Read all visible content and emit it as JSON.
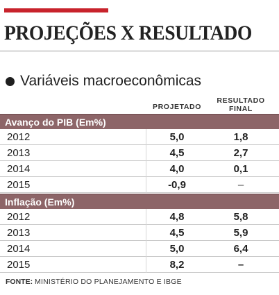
{
  "header": {
    "title": "PROJEÇÕES X RESULTADO",
    "subtitle": "Variáveis macroeconômicas",
    "accent_color": "#c8232c"
  },
  "table": {
    "columns": {
      "projetado": "PROJETADO",
      "resultado_line1": "RESULTADO",
      "resultado_line2": "FINAL"
    },
    "header_color": "#8d6568",
    "sections": [
      {
        "title": "Avanço do PIB (Em%)",
        "rows": [
          {
            "year": "2012",
            "projetado": "5,0",
            "resultado": "1,8"
          },
          {
            "year": "2013",
            "projetado": "4,5",
            "resultado": "2,7"
          },
          {
            "year": "2014",
            "projetado": "4,0",
            "resultado": "0,1"
          },
          {
            "year": "2015",
            "projetado": "-0,9",
            "resultado": "–"
          }
        ]
      },
      {
        "title": "Inflação (Em%)",
        "rows": [
          {
            "year": "2012",
            "projetado": "4,8",
            "resultado": "5,8"
          },
          {
            "year": "2013",
            "projetado": "4,5",
            "resultado": "5,9"
          },
          {
            "year": "2014",
            "projetado": "5,0",
            "resultado": "6,4"
          },
          {
            "year": "2015",
            "projetado": "8,2",
            "resultado": "–"
          }
        ]
      }
    ]
  },
  "footer": {
    "source_label": "FONTE:",
    "source_text": "MINISTÉRIO DO PLANEJAMENTO E IBGE"
  }
}
